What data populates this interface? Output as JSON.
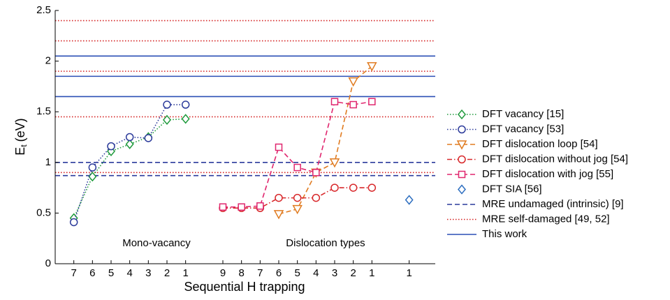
{
  "chart_data": {
    "type": "line",
    "xlabel": "Sequential H trapping",
    "ylabel": {
      "main": "E",
      "subscript": "t",
      "unit": "(eV)"
    },
    "categories": [
      "7",
      "6",
      "5",
      "4",
      "3",
      "2",
      "1",
      null,
      "9",
      "8",
      "7",
      "6",
      "5",
      "4",
      "3",
      "2",
      "1",
      null,
      "1"
    ],
    "ylim": [
      0,
      2.5
    ],
    "yticks": [
      0,
      0.5,
      1,
      1.5,
      2,
      2.5
    ],
    "annotations": [
      "Mono-vacancy",
      "Dislocation types"
    ],
    "series": [
      {
        "name": "DFT vacancy [15]",
        "color": "#1f9a3c",
        "linestyle": "dotted",
        "marker": "diamond",
        "values": [
          0.45,
          0.86,
          1.11,
          1.18,
          1.25,
          1.42,
          1.43,
          null,
          null,
          null,
          null,
          null,
          null,
          null,
          null,
          null,
          null,
          null,
          null
        ]
      },
      {
        "name": "DFT vacancy [53]",
        "color": "#2b3a9a",
        "linestyle": "dotted",
        "marker": "circle",
        "values": [
          0.41,
          0.95,
          1.16,
          1.25,
          1.24,
          1.57,
          1.57,
          null,
          null,
          null,
          null,
          null,
          null,
          null,
          null,
          null,
          null,
          null,
          null
        ]
      },
      {
        "name": "DFT dislocation loop [54]",
        "color": "#e07b20",
        "linestyle": "dashed",
        "marker": "triangle",
        "values": [
          null,
          null,
          null,
          null,
          null,
          null,
          null,
          null,
          null,
          null,
          null,
          0.49,
          0.54,
          0.9,
          1.0,
          1.8,
          1.95,
          null,
          null
        ]
      },
      {
        "name": "DFT dislocation without jog [54]",
        "color": "#d8282b",
        "linestyle": "dashdot",
        "marker": "circle",
        "values": [
          null,
          null,
          null,
          null,
          null,
          null,
          null,
          null,
          0.55,
          0.55,
          0.55,
          0.65,
          0.65,
          0.65,
          0.75,
          0.75,
          0.75,
          null,
          null
        ]
      },
      {
        "name": "DFT dislocation with jog [55]",
        "color": "#e0266e",
        "linestyle": "dashed",
        "marker": "square",
        "values": [
          null,
          null,
          null,
          null,
          null,
          null,
          null,
          null,
          0.56,
          0.56,
          0.57,
          1.15,
          0.95,
          0.9,
          1.6,
          1.57,
          1.6,
          null,
          null
        ]
      },
      {
        "name": "DFT SIA [56]",
        "color": "#2e6fc0",
        "linestyle": "none",
        "marker": "diamond",
        "values": [
          null,
          null,
          null,
          null,
          null,
          null,
          null,
          null,
          null,
          null,
          null,
          null,
          null,
          null,
          null,
          null,
          null,
          null,
          0.63
        ]
      }
    ],
    "reference_lines": [
      {
        "name": "MRE undamaged (intrinsic) [9]",
        "color": "#2a3a9c",
        "linestyle": "dashed",
        "values": [
          1.0,
          0.87
        ]
      },
      {
        "name": "MRE self-damaged [49, 52]",
        "color": "#d42020",
        "linestyle": "dotted",
        "values": [
          2.4,
          2.2,
          1.9,
          1.45,
          0.9
        ]
      },
      {
        "name": "This work",
        "color": "#2b4fb5",
        "linestyle": "solid",
        "values": [
          2.05,
          1.85,
          1.65
        ]
      }
    ]
  }
}
